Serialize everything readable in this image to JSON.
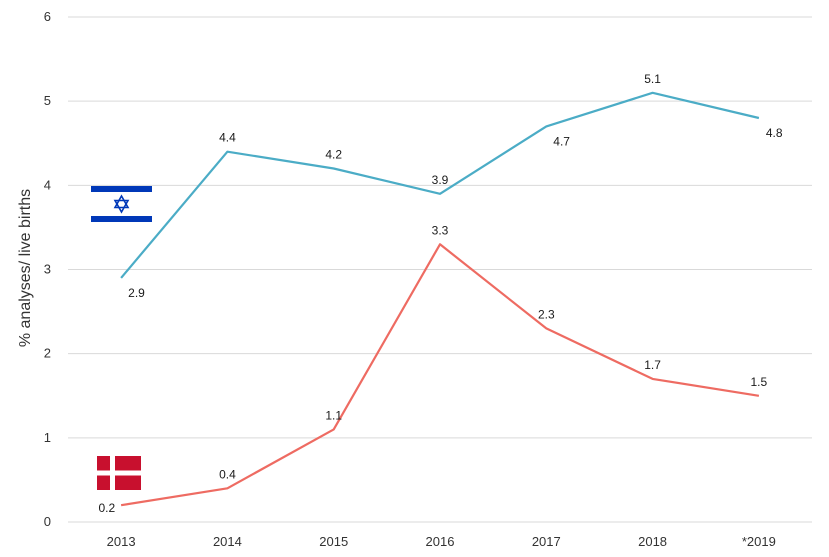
{
  "chart_data": {
    "type": "line",
    "title": "",
    "xlabel": "",
    "ylabel": "% analyses/ live births",
    "categories": [
      "2013",
      "2014",
      "2015",
      "2016",
      "2017",
      "2018",
      "*2019"
    ],
    "ylim": [
      0,
      6
    ],
    "yticks": [
      "0",
      "1",
      "2",
      "3",
      "4",
      "5",
      "6"
    ],
    "grid": true,
    "legend": "flag icons placed beside each series (Israel flag near upper line, Denmark flag near lower line)",
    "series": [
      {
        "key": "israel",
        "color": "#4BACC6",
        "values": [
          2.9,
          4.4,
          4.2,
          3.9,
          4.7,
          5.1,
          4.8
        ],
        "labels": [
          "2.9",
          "4.4",
          "4.2",
          "3.9",
          "4.7",
          "5.1",
          "4.8"
        ],
        "label_positions": [
          "below",
          "above",
          "above",
          "above",
          "below",
          "above",
          "below"
        ]
      },
      {
        "key": "denmark",
        "color": "#EE6B62",
        "values": [
          0.2,
          0.4,
          1.1,
          3.3,
          2.3,
          1.7,
          1.5
        ],
        "labels": [
          "0.2",
          "0.4",
          "1.1",
          "3.3",
          "2.3",
          "1.7",
          "1.5"
        ],
        "label_positions": [
          "left",
          "above",
          "above",
          "above",
          "above",
          "above",
          "above"
        ]
      }
    ]
  },
  "icons": {
    "israel": "israel-flag-icon",
    "denmark": "denmark-flag-icon"
  },
  "colors": {
    "grid": "#D9D9D9",
    "israel_flag_blue": "#0038B8",
    "denmark_flag_red": "#C8102E"
  }
}
